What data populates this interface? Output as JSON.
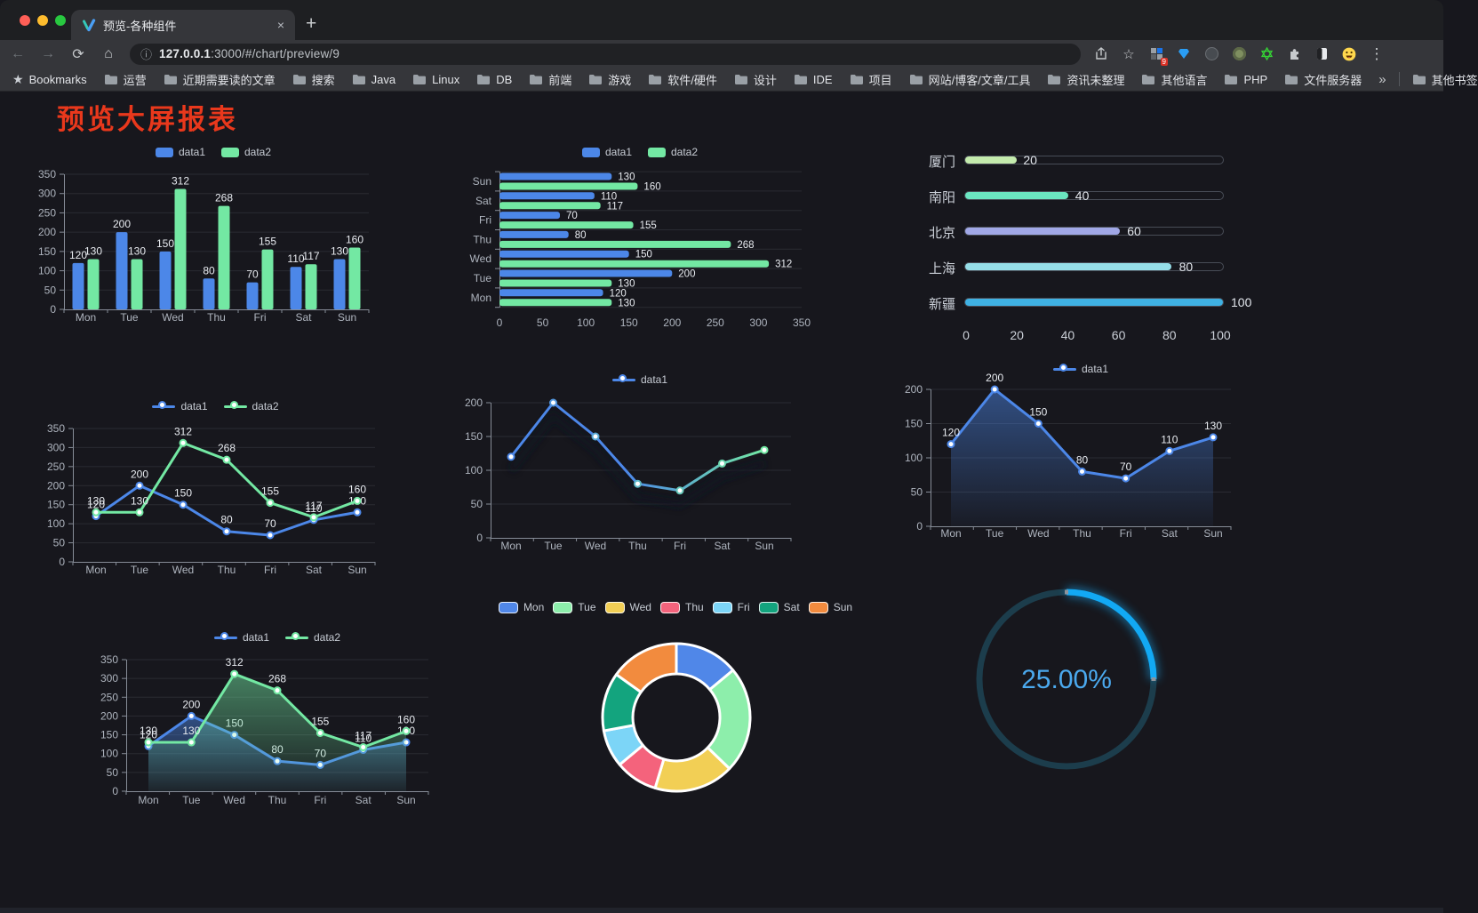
{
  "browser": {
    "tab": {
      "title": "预览-各种组件",
      "close_glyph": "×",
      "new_tab_glyph": "+"
    },
    "nav": {
      "back": "←",
      "forward": "→",
      "reload": "⟳",
      "home": "⌂"
    },
    "address": {
      "info_glyph": "ⓘ",
      "host": "127.0.0.1",
      "rest": ":3000/#/chart/preview/9"
    },
    "actions": {
      "star_glyph": "☆",
      "extension_badge": "9",
      "menu_glyph": "⋮"
    },
    "bookmarks_bar": {
      "star_glyph": "★",
      "label": "Bookmarks",
      "folders": [
        "运营",
        "近期需要读的文章",
        "搜索",
        "Java",
        "Linux",
        "DB",
        "前端",
        "游戏",
        "软件/硬件",
        "设计",
        "IDE",
        "项目",
        "网站/博客/文章/工具",
        "资讯未整理",
        "其他语言",
        "PHP",
        "文件服务器"
      ],
      "overflow_glyph": "»",
      "other_bookmarks": "其他书签"
    }
  },
  "page": {
    "title": "预览大屏报表",
    "title_color": "#e9381c",
    "background": "#17171d"
  },
  "colors": {
    "data1": "#4c87e8",
    "data2": "#73e8a3",
    "grid": "#2a2b32",
    "axis": "#868c97",
    "tick_text": "#aeb4be",
    "value_text": "#e8ebf0"
  },
  "chart_data": [
    {
      "id": "bar-vertical",
      "type": "bar",
      "categories": [
        "Mon",
        "Tue",
        "Wed",
        "Thu",
        "Fri",
        "Sat",
        "Sun"
      ],
      "series": [
        {
          "name": "data1",
          "color": "#4c87e8",
          "values": [
            120,
            200,
            150,
            80,
            70,
            110,
            130
          ]
        },
        {
          "name": "data2",
          "color": "#73e8a3",
          "values": [
            130,
            130,
            312,
            268,
            155,
            117,
            160
          ]
        }
      ],
      "ylim": [
        0,
        350
      ],
      "ytick": 50,
      "legend_position": "top",
      "grid": true
    },
    {
      "id": "bar-horizontal",
      "type": "bar",
      "orientation": "horizontal",
      "categories": [
        "Mon",
        "Tue",
        "Wed",
        "Thu",
        "Fri",
        "Sat",
        "Sun"
      ],
      "categories_display_top_to_bottom": [
        "Sun",
        "Sat",
        "Fri",
        "Thu",
        "Wed",
        "Tue",
        "Mon"
      ],
      "series": [
        {
          "name": "data1",
          "color": "#4c87e8",
          "values": [
            120,
            200,
            150,
            80,
            70,
            110,
            130
          ]
        },
        {
          "name": "data2",
          "color": "#73e8a3",
          "values": [
            130,
            130,
            312,
            268,
            155,
            117,
            160
          ]
        }
      ],
      "xlim": [
        0,
        350
      ],
      "xtick": 50,
      "legend_position": "top"
    },
    {
      "id": "city-progress",
      "type": "bar",
      "orientation": "horizontal",
      "categories": [
        "厦门",
        "南阳",
        "北京",
        "上海",
        "新疆"
      ],
      "values": [
        20,
        40,
        60,
        80,
        100
      ],
      "bar_colors": [
        "#c4ebad",
        "#6be6c1",
        "#a0a7e6",
        "#96dee8",
        "#3fb1e3"
      ],
      "xlim": [
        0,
        100
      ],
      "xticks": [
        0,
        20,
        40,
        60,
        80,
        100
      ]
    },
    {
      "id": "line-basic",
      "type": "line",
      "categories": [
        "Mon",
        "Tue",
        "Wed",
        "Thu",
        "Fri",
        "Sat",
        "Sun"
      ],
      "series": [
        {
          "name": "data1",
          "color": "#4c87e8",
          "values": [
            120,
            200,
            150,
            80,
            70,
            110,
            130
          ]
        },
        {
          "name": "data2",
          "color": "#73e8a3",
          "values": [
            130,
            130,
            312,
            268,
            155,
            117,
            160
          ]
        }
      ],
      "ylim": [
        0,
        350
      ],
      "ytick": 50,
      "point_labels": true
    },
    {
      "id": "line-gradient",
      "type": "line",
      "categories": [
        "Mon",
        "Tue",
        "Wed",
        "Thu",
        "Fri",
        "Sat",
        "Sun"
      ],
      "series": [
        {
          "name": "data1",
          "color": "#4c87e8",
          "values": [
            120,
            200,
            150,
            80,
            70,
            110,
            130
          ]
        }
      ],
      "line_gradient": [
        "#4c87e8",
        "#73e8a3"
      ],
      "ylim": [
        0,
        200
      ],
      "ytick": 50,
      "point_labels": false,
      "shadow": true
    },
    {
      "id": "line-area",
      "type": "area",
      "categories": [
        "Mon",
        "Tue",
        "Wed",
        "Thu",
        "Fri",
        "Sat",
        "Sun"
      ],
      "series": [
        {
          "name": "data1",
          "color": "#4c87e8",
          "values": [
            120,
            200,
            150,
            80,
            70,
            110,
            130
          ]
        }
      ],
      "ylim": [
        0,
        200
      ],
      "ytick": 50,
      "point_labels": true
    },
    {
      "id": "area-two",
      "type": "area",
      "categories": [
        "Mon",
        "Tue",
        "Wed",
        "Thu",
        "Fri",
        "Sat",
        "Sun"
      ],
      "series": [
        {
          "name": "data1",
          "color": "#4c87e8",
          "values": [
            120,
            200,
            150,
            80,
            70,
            110,
            130
          ]
        },
        {
          "name": "data2",
          "color": "#73e8a3",
          "values": [
            130,
            130,
            312,
            268,
            155,
            117,
            160
          ]
        }
      ],
      "ylim": [
        0,
        350
      ],
      "ytick": 50,
      "point_labels": true
    },
    {
      "id": "donut",
      "type": "pie",
      "categories": [
        "Mon",
        "Tue",
        "Wed",
        "Thu",
        "Fri",
        "Sat",
        "Sun"
      ],
      "values": [
        120,
        200,
        150,
        80,
        70,
        110,
        130
      ],
      "slice_colors": [
        "#5087e8",
        "#8deeab",
        "#f2cf55",
        "#f4637c",
        "#7cd5f7",
        "#13a47e",
        "#f28b3e"
      ],
      "inner_radius_ratio": 0.59,
      "border_color": "#ffffff"
    },
    {
      "id": "gauge",
      "type": "gauge",
      "value": 25,
      "label": "25.00%",
      "progress_color": "#12a9f4",
      "track_color": "#1c3d4c",
      "label_color": "#4ba9ee"
    }
  ]
}
